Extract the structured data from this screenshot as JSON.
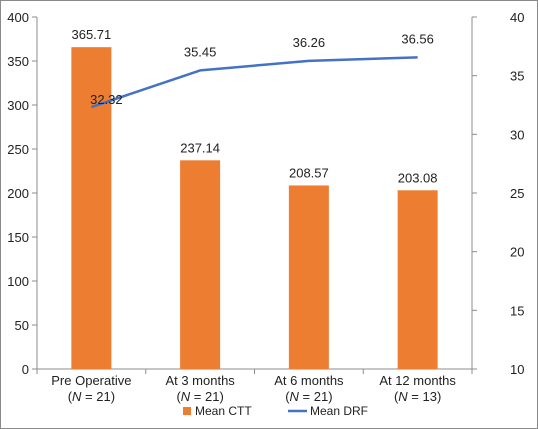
{
  "chart_data": {
    "type": "bar",
    "categories": [
      {
        "label": "Pre Operative",
        "n": "(N = 21)"
      },
      {
        "label": "At 3 months",
        "n": "(N = 21)"
      },
      {
        "label": "At 6 months",
        "n": "(N = 21)"
      },
      {
        "label": "At 12 months",
        "n": "(N = 13)"
      }
    ],
    "series": [
      {
        "name": "Mean CTT",
        "type": "bar",
        "axis": "left",
        "color": "#ED7D31",
        "values": [
          365.71,
          237.14,
          208.57,
          203.08
        ],
        "labels": [
          "365.71",
          "237.14",
          "208.57",
          "203.08"
        ]
      },
      {
        "name": "Mean DRF",
        "type": "line",
        "axis": "right",
        "color": "#4472C4",
        "values": [
          32.32,
          35.45,
          36.26,
          36.56
        ],
        "labels": [
          "32.32",
          "35.45",
          "36.26",
          "36.56"
        ]
      }
    ],
    "left_axis": {
      "min": 0,
      "max": 400,
      "ticks": [
        0,
        50,
        100,
        150,
        200,
        250,
        300,
        350,
        400
      ]
    },
    "right_axis": {
      "min": 10,
      "max": 40,
      "ticks": [
        10,
        15,
        20,
        25,
        30,
        35,
        40
      ]
    },
    "grid": false,
    "legend": "bottom",
    "title": "",
    "xlabel": "",
    "ylabel": ""
  }
}
